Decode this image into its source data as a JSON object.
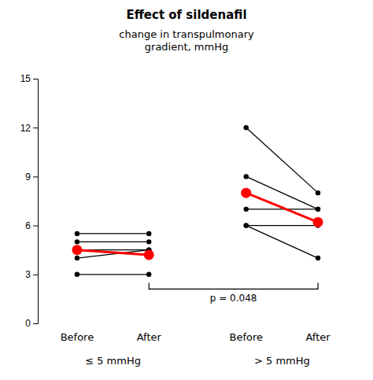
{
  "chart_data": {
    "type": "slope",
    "title": "Effect of sildenafil",
    "subtitle": "change in transpulmonary\ngradient, mmHg",
    "groups": [
      {
        "label": "≤ 5 mmHg",
        "categories": [
          "Before",
          "After"
        ],
        "series": [
          {
            "color": "#000000",
            "values": [
              5.5,
              5.5
            ]
          },
          {
            "color": "#000000",
            "values": [
              5.0,
              5.0
            ]
          },
          {
            "color": "#000000",
            "values": [
              4.5,
              4.5
            ]
          },
          {
            "color": "#000000",
            "values": [
              4.0,
              4.5
            ]
          },
          {
            "color": "#000000",
            "values": [
              3.0,
              3.0
            ]
          },
          {
            "color": "#ff0000",
            "values": [
              4.5,
              4.2
            ]
          }
        ]
      },
      {
        "label": "> 5 mmHg",
        "categories": [
          "Before",
          "After"
        ],
        "series": [
          {
            "color": "#000000",
            "values": [
              12.0,
              8.0
            ]
          },
          {
            "color": "#000000",
            "values": [
              9.0,
              7.0
            ]
          },
          {
            "color": "#000000",
            "values": [
              7.0,
              7.0
            ]
          },
          {
            "color": "#000000",
            "values": [
              6.0,
              6.0
            ]
          },
          {
            "color": "#000000",
            "values": [
              6.0,
              4.0
            ]
          },
          {
            "color": "#ff0000",
            "values": [
              8.0,
              6.2
            ]
          }
        ]
      }
    ],
    "annotations": [
      {
        "text": "p = 0.048",
        "y": 2.1
      }
    ],
    "ylim": [
      0,
      15
    ],
    "yticks": [
      0,
      3,
      6,
      9,
      12,
      15
    ],
    "grid": false
  }
}
